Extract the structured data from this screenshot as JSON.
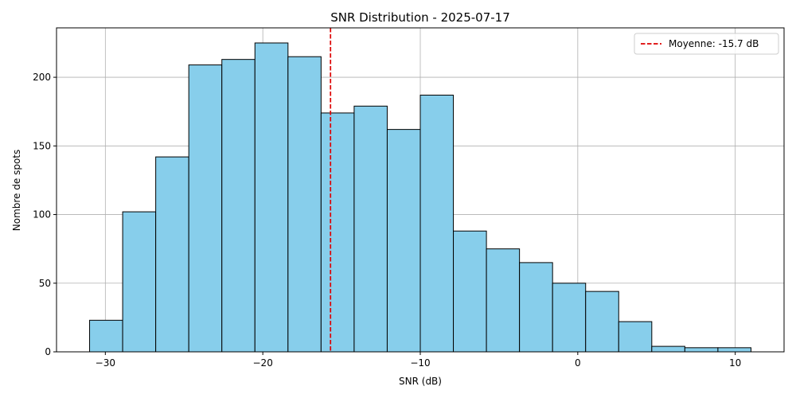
{
  "chart_data": {
    "type": "bar",
    "title": "SNR Distribution - 2025-07-17",
    "xlabel": "SNR (dB)",
    "ylabel": "Nombre de spots",
    "xlim": [
      -33.1,
      13.1
    ],
    "ylim": [
      0,
      236
    ],
    "grid": true,
    "legend_placement": "top-right",
    "bin_edges": [
      -31,
      -28.9,
      -26.8,
      -24.7,
      -22.6,
      -20.5,
      -18.4,
      -16.3,
      -14.2,
      -12.1,
      -10.0,
      -7.9,
      -5.8,
      -3.7,
      -1.6,
      0.5,
      2.6,
      4.7,
      6.8,
      8.9,
      11.0
    ],
    "values": [
      23,
      102,
      142,
      209,
      213,
      225,
      215,
      174,
      179,
      162,
      187,
      88,
      75,
      65,
      50,
      44,
      22,
      4,
      3,
      3
    ],
    "x_ticks": [
      -30,
      -20,
      -10,
      0,
      10
    ],
    "x_tick_labels": [
      "−30",
      "−20",
      "−10",
      "0",
      "10"
    ],
    "y_ticks": [
      0,
      50,
      100,
      150,
      200
    ],
    "y_tick_labels": [
      "0",
      "50",
      "100",
      "150",
      "200"
    ],
    "mean_value": -15.7,
    "mean_label": "Moyenne: -15.7 dB",
    "colors": {
      "bar_fill": "#87ceeb",
      "bar_edge": "#000000",
      "mean_line": "#dd0000",
      "grid": "#b0b0b0"
    }
  }
}
